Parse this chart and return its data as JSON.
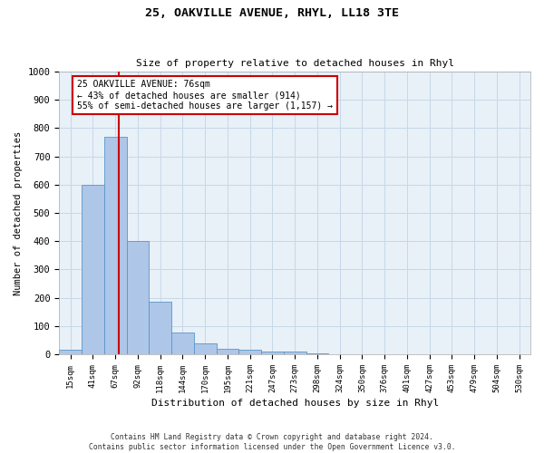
{
  "title": "25, OAKVILLE AVENUE, RHYL, LL18 3TE",
  "subtitle": "Size of property relative to detached houses in Rhyl",
  "xlabel": "Distribution of detached houses by size in Rhyl",
  "ylabel": "Number of detached properties",
  "bar_labels": [
    "15sqm",
    "41sqm",
    "67sqm",
    "92sqm",
    "118sqm",
    "144sqm",
    "170sqm",
    "195sqm",
    "221sqm",
    "247sqm",
    "273sqm",
    "298sqm",
    "324sqm",
    "350sqm",
    "376sqm",
    "401sqm",
    "427sqm",
    "453sqm",
    "479sqm",
    "504sqm",
    "530sqm"
  ],
  "bar_values": [
    15,
    600,
    770,
    400,
    185,
    78,
    38,
    20,
    15,
    10,
    10,
    5,
    0,
    0,
    0,
    0,
    0,
    0,
    0,
    0,
    0
  ],
  "bar_color": "#aec6e8",
  "bar_edge_color": "#5a96c8",
  "red_line_x": 2.15,
  "annotation_text": "25 OAKVILLE AVENUE: 76sqm\n← 43% of detached houses are smaller (914)\n55% of semi-detached houses are larger (1,157) →",
  "annotation_box_color": "#ffffff",
  "annotation_box_edge_color": "#cc0000",
  "red_line_color": "#cc0000",
  "ylim": [
    0,
    1000
  ],
  "yticks": [
    0,
    100,
    200,
    300,
    400,
    500,
    600,
    700,
    800,
    900,
    1000
  ],
  "grid_color": "#c8d8e8",
  "bg_color": "#e8f0f8",
  "footnote": "Contains HM Land Registry data © Crown copyright and database right 2024.\nContains public sector information licensed under the Open Government Licence v3.0."
}
